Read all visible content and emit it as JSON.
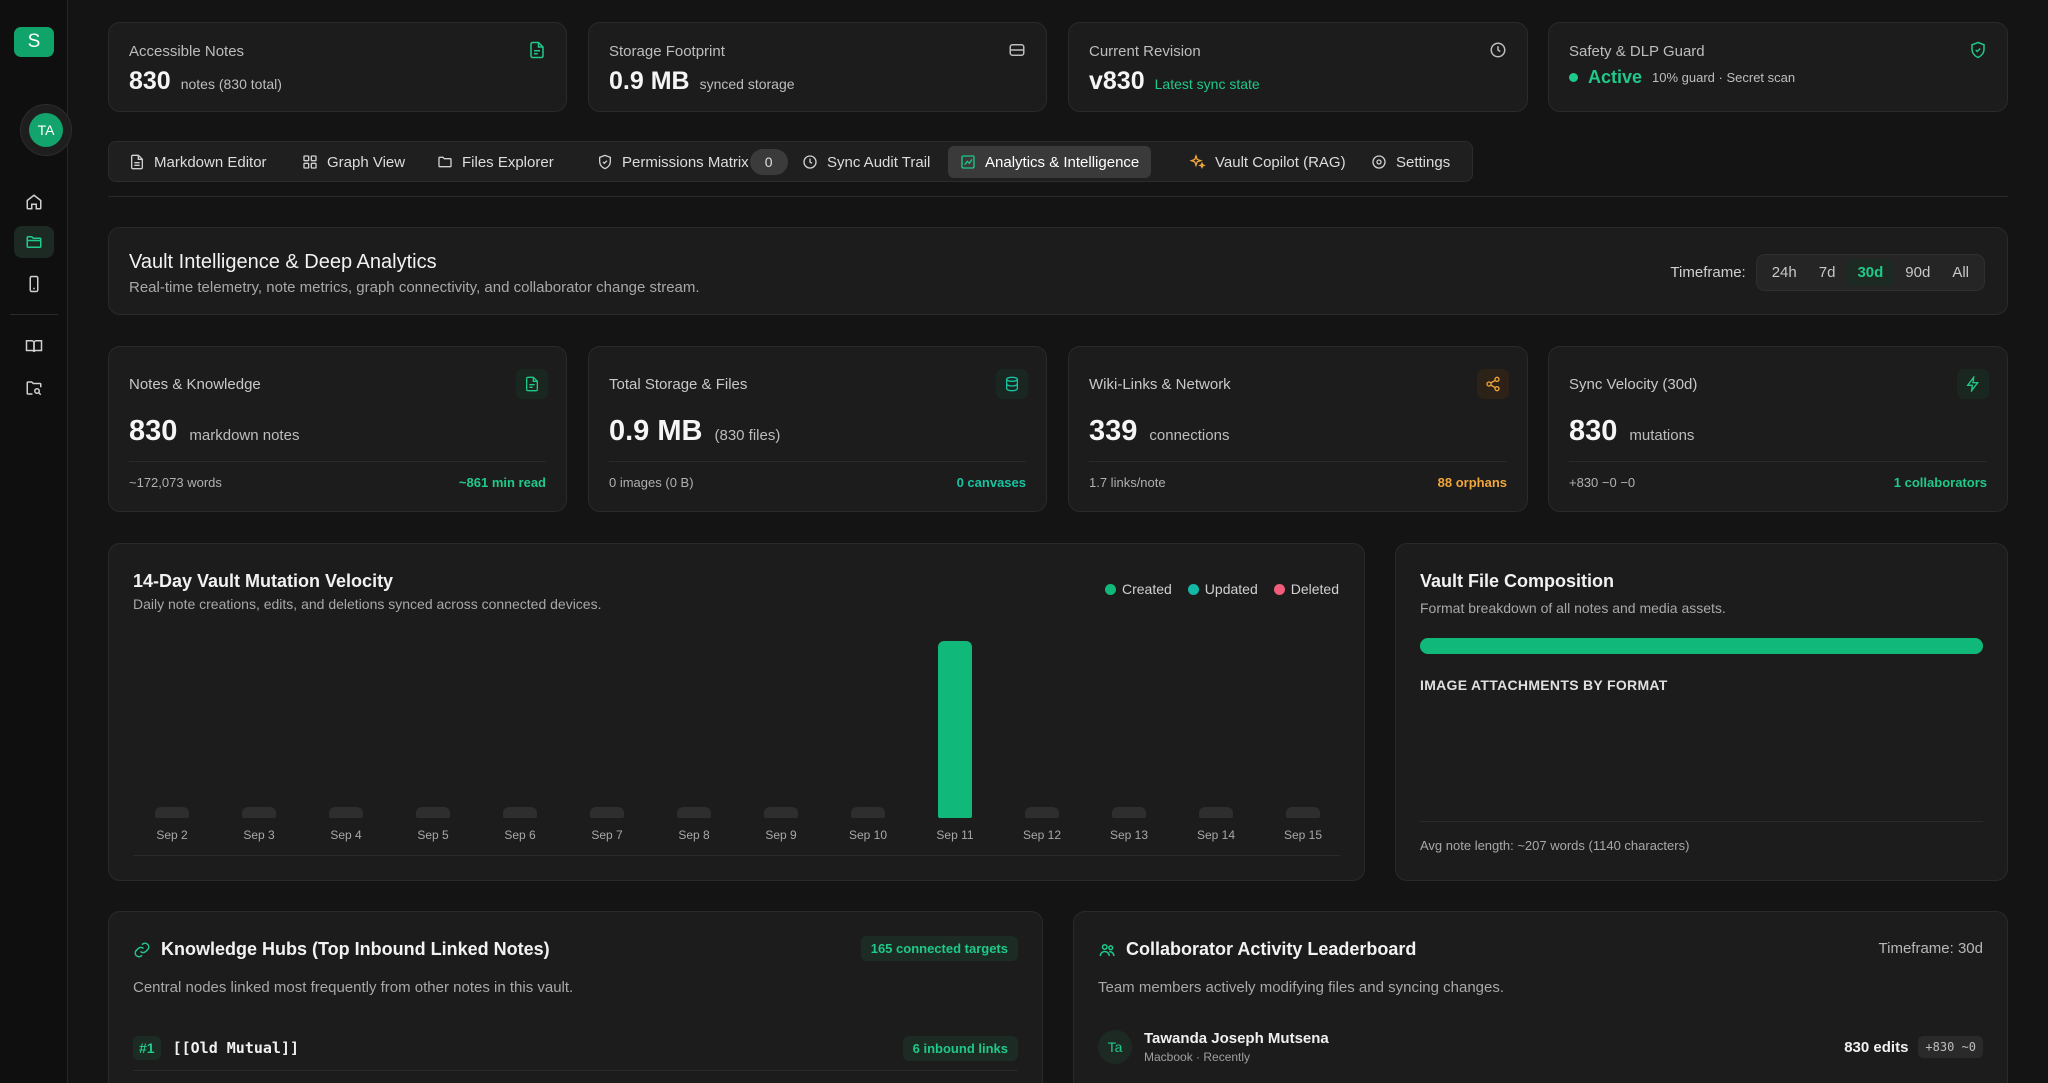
{
  "sidebar": {
    "logo": "S",
    "avatar": "TA"
  },
  "top_cards": [
    {
      "label": "Accessible Notes",
      "value": "830",
      "sub": "notes (830 total)",
      "icon": "file-text-icon"
    },
    {
      "label": "Storage Footprint",
      "value": "0.9 MB",
      "sub": "synced storage",
      "icon": "database-icon"
    },
    {
      "label": "Current Revision",
      "value": "v830",
      "sub": "Latest sync state",
      "icon": "clock-icon"
    },
    {
      "label": "Safety & DLP Guard",
      "value": "Active",
      "sub": "10% guard · Secret scan",
      "icon": "shield-check-icon"
    }
  ],
  "tabs": [
    {
      "label": "Markdown Editor"
    },
    {
      "label": "Graph View"
    },
    {
      "label": "Files Explorer"
    },
    {
      "label": "Permissions Matrix",
      "badge": "0"
    },
    {
      "label": "Sync Audit Trail"
    },
    {
      "label": "Analytics & Intelligence",
      "active": true
    },
    {
      "label": "Vault Copilot (RAG)"
    },
    {
      "label": "Settings"
    }
  ],
  "header": {
    "title": "Vault Intelligence & Deep Analytics",
    "subtitle": "Real-time telemetry, note metrics, graph connectivity, and collaborator change stream.",
    "timeframe_label": "Timeframe:",
    "timeframes": [
      "24h",
      "7d",
      "30d",
      "90d",
      "All"
    ],
    "timeframe_active": "30d"
  },
  "stats": [
    {
      "label": "Notes & Knowledge",
      "value": "830",
      "unit": "markdown notes",
      "foot_left": "~172,073 words",
      "foot_right": "~861 min read",
      "icon": "file-icon"
    },
    {
      "label": "Total Storage & Files",
      "value": "0.9 MB",
      "unit": "(830 files)",
      "foot_left": "0 images (0 B)",
      "foot_right": "0 canvases",
      "icon": "database-icon"
    },
    {
      "label": "Wiki-Links & Network",
      "value": "339",
      "unit": "connections",
      "foot_left": "1.7 links/note",
      "foot_right": "88 orphans",
      "icon": "share-icon"
    },
    {
      "label": "Sync Velocity (30d)",
      "value": "830",
      "unit": "mutations",
      "foot_left": "+830 −0 −0",
      "foot_right": "1 collaborators",
      "icon": "zap-icon"
    }
  ],
  "velocity": {
    "title": "14-Day Vault Mutation Velocity",
    "subtitle": "Daily note creations, edits, and deletions synced across connected devices.",
    "legend": [
      "Created",
      "Updated",
      "Deleted"
    ]
  },
  "chart_data": {
    "type": "bar",
    "title": "14-Day Vault Mutation Velocity",
    "categories": [
      "Sep 2",
      "Sep 3",
      "Sep 4",
      "Sep 5",
      "Sep 6",
      "Sep 7",
      "Sep 8",
      "Sep 9",
      "Sep 10",
      "Sep 11",
      "Sep 12",
      "Sep 13",
      "Sep 14",
      "Sep 15"
    ],
    "series": [
      {
        "name": "Created",
        "values": [
          0,
          0,
          0,
          0,
          0,
          0,
          0,
          0,
          0,
          830,
          0,
          0,
          0,
          0
        ]
      },
      {
        "name": "Updated",
        "values": [
          0,
          0,
          0,
          0,
          0,
          0,
          0,
          0,
          0,
          0,
          0,
          0,
          0,
          0
        ]
      },
      {
        "name": "Deleted",
        "values": [
          0,
          0,
          0,
          0,
          0,
          0,
          0,
          0,
          0,
          0,
          0,
          0,
          0,
          0
        ]
      }
    ],
    "legend": "top-right",
    "grid": false,
    "colors": {
      "Created": "#10b97a",
      "Updated": "#14b8a6",
      "Deleted": "#f05d7a",
      "empty": "#2e2e2e"
    }
  },
  "composition": {
    "title": "Vault File Composition",
    "subtitle": "Format breakdown of all notes and media assets.",
    "section": "IMAGE ATTACHMENTS BY FORMAT",
    "progress": 1.0,
    "avg": "Avg note length: ~207 words (1140 characters)"
  },
  "hubs": {
    "title": "Knowledge Hubs (Top Inbound Linked Notes)",
    "badge": "165 connected targets",
    "subtitle": "Central nodes linked most frequently from other notes in this vault.",
    "items": [
      {
        "rank": "#1",
        "name": "[[Old Mutual]]",
        "links": "6 inbound links"
      }
    ]
  },
  "leaderboard": {
    "title": "Collaborator Activity Leaderboard",
    "timeframe": "Timeframe: 30d",
    "subtitle": "Team members actively modifying files and syncing changes.",
    "items": [
      {
        "initials": "Ta",
        "name": "Tawanda Joseph Mutsena",
        "meta": "Macbook · Recently",
        "edits": "830 edits",
        "delta": "+830 ~0"
      }
    ]
  },
  "colors": {
    "accent": "#1fc98a",
    "brand": "#10a36a",
    "amber": "#f0a63a",
    "background": "#141414",
    "card": "#1c1c1c"
  }
}
